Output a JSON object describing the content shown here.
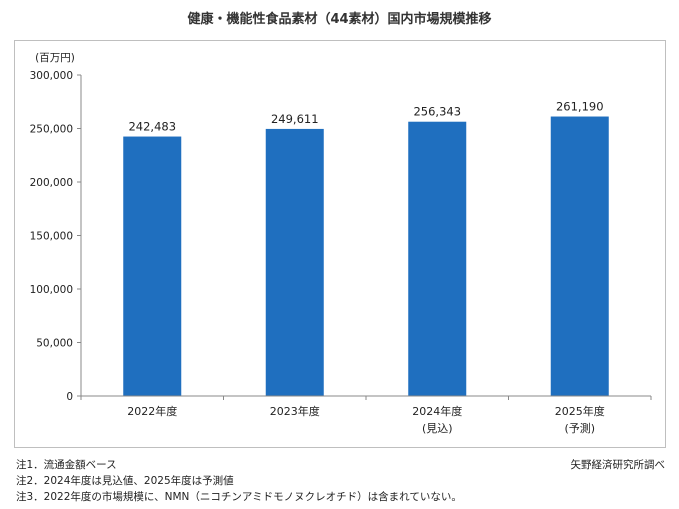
{
  "chart_data": {
    "type": "bar",
    "title": "健康・機能性食品素材（44素材）国内市場規模推移",
    "unit_label": "(百万円)",
    "categories": [
      "2022年度",
      "2023年度",
      "2024年度",
      "2025年度"
    ],
    "category_sublabels": [
      "",
      "",
      "(見込)",
      "(予測)"
    ],
    "values": [
      242483,
      249611,
      256343,
      261190
    ],
    "data_labels": [
      "242,483",
      "249,611",
      "256,343",
      "261,190"
    ],
    "ylim": [
      0,
      300000
    ],
    "yticks": [
      0,
      50000,
      100000,
      150000,
      200000,
      250000,
      300000
    ],
    "ytick_labels": [
      "0",
      "50,000",
      "100,000",
      "150,000",
      "200,000",
      "250,000",
      "300,000"
    ],
    "bar_color": "#1f6fbf",
    "grid": false
  },
  "notes": [
    "注1．流通金額ベース",
    "注2．2024年度は見込値、2025年度は予測値",
    "注3．2022年度の市場規模に、NMN（ニコチンアミドモノヌクレオチド）は含まれていない。"
  ],
  "source": "矢野経済研究所調べ"
}
